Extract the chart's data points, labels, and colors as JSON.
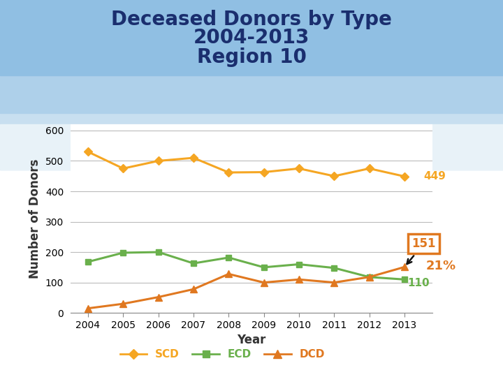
{
  "title_line1": "Deceased Donors by Type",
  "title_line2": "2004-2013",
  "title_line3": "Region 10",
  "xlabel": "Year",
  "ylabel": "Number of Donors",
  "years": [
    2004,
    2005,
    2006,
    2007,
    2008,
    2009,
    2010,
    2011,
    2012,
    2013
  ],
  "SCD": [
    530,
    475,
    500,
    510,
    462,
    463,
    475,
    450,
    475,
    449
  ],
  "ECD": [
    168,
    198,
    200,
    163,
    182,
    150,
    160,
    148,
    118,
    110
  ],
  "DCD": [
    15,
    30,
    52,
    78,
    128,
    100,
    110,
    100,
    118,
    151
  ],
  "SCD_color": "#F5A623",
  "ECD_color": "#6ab04c",
  "DCD_color": "#E07820",
  "ylim": [
    0,
    620
  ],
  "yticks": [
    0,
    100,
    200,
    300,
    400,
    500,
    600
  ],
  "title_color": "#1a2e6e",
  "title_fontsize": 20,
  "axis_label_fontsize": 12,
  "tick_fontsize": 10,
  "legend_fontsize": 11,
  "bg_sky_color": "#a8cce8",
  "bg_white_color": "#ffffff",
  "grid_color": "#bbbbbb",
  "annotation_box_color": "#E07820",
  "annotation_arrow_color": "#111111"
}
